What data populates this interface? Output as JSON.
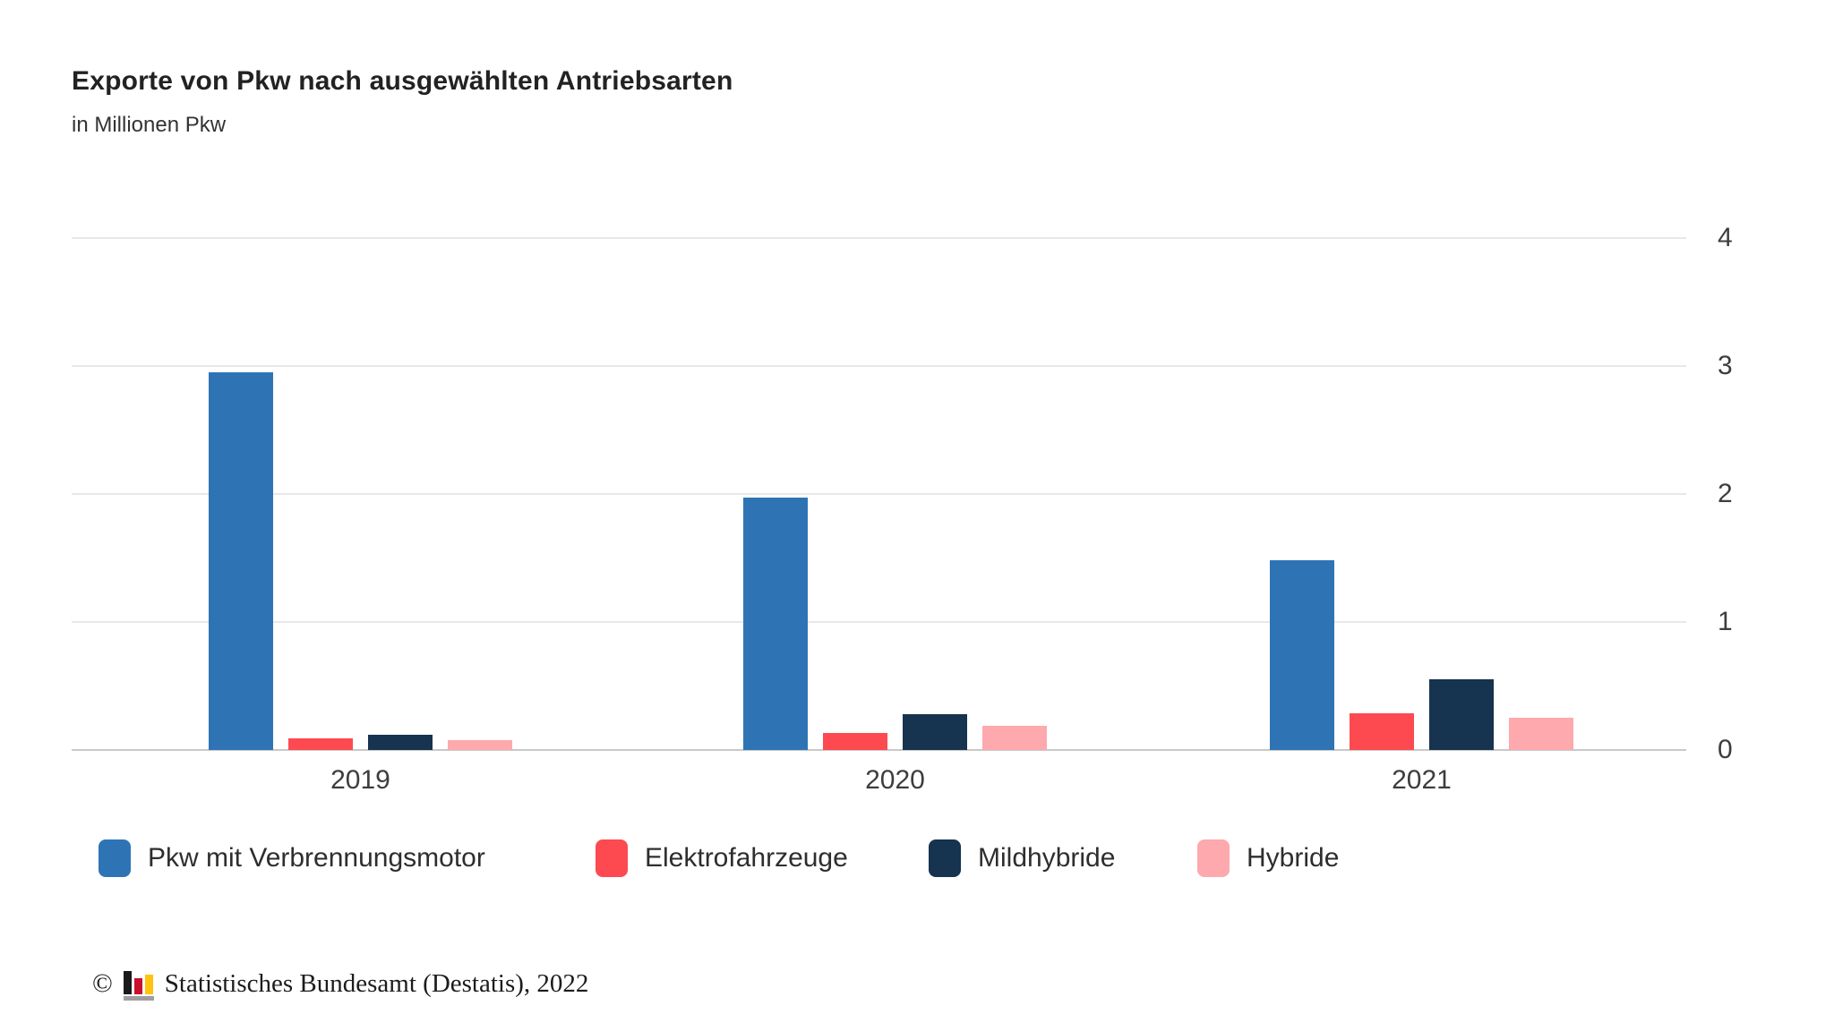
{
  "header": {
    "title": "Exporte von Pkw nach ausgewählten Antriebsarten",
    "subtitle": "in Millionen Pkw"
  },
  "chart_data": {
    "type": "bar",
    "categories": [
      "2019",
      "2020",
      "2021"
    ],
    "series": [
      {
        "name": "Pkw mit Verbrennungsmotor",
        "color": "#2e74b5",
        "values": [
          2.95,
          1.97,
          1.48
        ]
      },
      {
        "name": "Elektrofahrzeuge",
        "color": "#fc4a50",
        "values": [
          0.09,
          0.13,
          0.29
        ]
      },
      {
        "name": "Mildhybride",
        "color": "#16334f",
        "values": [
          0.12,
          0.28,
          0.55
        ]
      },
      {
        "name": "Hybride",
        "color": "#fda9ad",
        "values": [
          0.08,
          0.19,
          0.25
        ]
      }
    ],
    "title": "Exporte von Pkw nach ausgewählten Antriebsarten",
    "subtitle": "in Millionen Pkw",
    "xlabel": "",
    "ylabel": "in Millionen Pkw",
    "ylim": [
      0,
      4
    ],
    "yticks": [
      0,
      1,
      2,
      3,
      4
    ],
    "grid": true,
    "legend_position": "bottom",
    "y_axis_side": "right"
  },
  "footer": {
    "copyright": "©",
    "source_text": "Statistisches Bundesamt (Destatis), 2022",
    "logo": {
      "icon": "destatis-logo-icon",
      "bar_colors": [
        "#1a1a1a",
        "#c8102e",
        "#ffc20e"
      ],
      "base_color": "#9e9e9e"
    }
  }
}
